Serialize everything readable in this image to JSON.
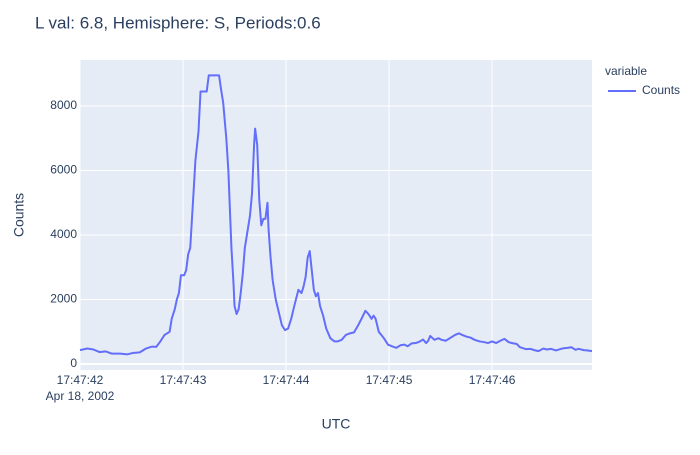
{
  "chart_data": {
    "type": "line",
    "title": "L val: 6.8, Hemisphere: S, Periods:0.6",
    "x_label": "UTC",
    "y_label": "Counts",
    "x_date_label": "Apr 18, 2002",
    "legend_title": "variable",
    "legend_position": "right",
    "grid": true,
    "xlim": [
      "2002-04-18T17:47:42.00",
      "2002-04-18T17:47:46.97"
    ],
    "xticks": [
      {
        "value": "2002-04-18T17:47:42",
        "label": "17:47:42"
      },
      {
        "value": "2002-04-18T17:47:43",
        "label": "17:47:43"
      },
      {
        "value": "2002-04-18T17:47:44",
        "label": "17:47:44"
      },
      {
        "value": "2002-04-18T17:47:45",
        "label": "17:47:45"
      },
      {
        "value": "2002-04-18T17:47:46",
        "label": "17:47:46"
      }
    ],
    "ylim": [
      -186,
      9426
    ],
    "yticks": [
      0,
      2000,
      4000,
      6000,
      8000
    ],
    "x": [
      "2002-04-18T17:47:42.00",
      "2002-04-18T17:47:42.07",
      "2002-04-18T17:47:42.13",
      "2002-04-18T17:47:42.19",
      "2002-04-18T17:47:42.25",
      "2002-04-18T17:47:42.31",
      "2002-04-18T17:47:42.39",
      "2002-04-18T17:47:42.46",
      "2002-04-18T17:47:42.51",
      "2002-04-18T17:47:42.58",
      "2002-04-18T17:47:42.64",
      "2002-04-18T17:47:42.70",
      "2002-04-18T17:47:42.74",
      "2002-04-18T17:47:42.78",
      "2002-04-18T17:47:42.82",
      "2002-04-18T17:47:42.85",
      "2002-04-18T17:47:42.87",
      "2002-04-18T17:47:42.89",
      "2002-04-18T17:47:42.92",
      "2002-04-18T17:47:42.94",
      "2002-04-18T17:47:42.96",
      "2002-04-18T17:47:42.98",
      "2002-04-18T17:47:43.01",
      "2002-04-18T17:47:43.03",
      "2002-04-18T17:47:43.05",
      "2002-04-18T17:47:43.07",
      "2002-04-18T17:47:43.10",
      "2002-04-18T17:47:43.12",
      "2002-04-18T17:47:43.15",
      "2002-04-18T17:47:43.17",
      "2002-04-18T17:47:43.23",
      "2002-04-18T17:47:43.25",
      "2002-04-18T17:47:43.35",
      "2002-04-18T17:47:43.37",
      "2002-04-18T17:47:43.39",
      "2002-04-18T17:47:43.42",
      "2002-04-18T17:47:43.44",
      "2002-04-18T17:47:43.47",
      "2002-04-18T17:47:43.49",
      "2002-04-18T17:47:43.50",
      "2002-04-18T17:47:43.52",
      "2002-04-18T17:47:43.54",
      "2002-04-18T17:47:43.56",
      "2002-04-18T17:47:43.58",
      "2002-04-18T17:47:43.60",
      "2002-04-18T17:47:43.63",
      "2002-04-18T17:47:43.65",
      "2002-04-18T17:47:43.67",
      "2002-04-18T17:47:43.69",
      "2002-04-18T17:47:43.70",
      "2002-04-18T17:47:43.72",
      "2002-04-18T17:47:43.74",
      "2002-04-18T17:47:43.76",
      "2002-04-18T17:47:43.78",
      "2002-04-18T17:47:43.80",
      "2002-04-18T17:47:43.82",
      "2002-04-18T17:47:43.83",
      "2002-04-18T17:47:43.85",
      "2002-04-18T17:47:43.87",
      "2002-04-18T17:47:43.90",
      "2002-04-18T17:47:43.93",
      "2002-04-18T17:47:43.96",
      "2002-04-18T17:47:43.99",
      "2002-04-18T17:47:44.02",
      "2002-04-18T17:47:44.05",
      "2002-04-18T17:47:44.08",
      "2002-04-18T17:47:44.12",
      "2002-04-18T17:47:44.15",
      "2002-04-18T17:47:44.17",
      "2002-04-18T17:47:44.19",
      "2002-04-18T17:47:44.21",
      "2002-04-18T17:47:44.23",
      "2002-04-18T17:47:44.25",
      "2002-04-18T17:47:44.27",
      "2002-04-18T17:47:44.29",
      "2002-04-18T17:47:44.31",
      "2002-04-18T17:47:44.33",
      "2002-04-18T17:47:44.36",
      "2002-04-18T17:47:44.39",
      "2002-04-18T17:47:44.43",
      "2002-04-18T17:47:44.47",
      "2002-04-18T17:47:44.50",
      "2002-04-18T17:47:44.54",
      "2002-04-18T17:47:44.58",
      "2002-04-18T17:47:44.62",
      "2002-04-18T17:47:44.66",
      "2002-04-18T17:47:44.70",
      "2002-04-18T17:47:44.74",
      "2002-04-18T17:47:44.77",
      "2002-04-18T17:47:44.80",
      "2002-04-18T17:47:44.83",
      "2002-04-18T17:47:44.85",
      "2002-04-18T17:47:44.87",
      "2002-04-18T17:47:44.90",
      "2002-04-18T17:47:44.95",
      "2002-04-18T17:47:44.99",
      "2002-04-18T17:47:45.03",
      "2002-04-18T17:47:45.07",
      "2002-04-18T17:47:45.11",
      "2002-04-18T17:47:45.15",
      "2002-04-18T17:47:45.18",
      "2002-04-18T17:47:45.22",
      "2002-04-18T17:47:45.26",
      "2002-04-18T17:47:45.30",
      "2002-04-18T17:47:45.33",
      "2002-04-18T17:47:45.36",
      "2002-04-18T17:47:45.38",
      "2002-04-18T17:47:45.40",
      "2002-04-18T17:47:45.44",
      "2002-04-18T17:47:45.48",
      "2002-04-18T17:47:45.51",
      "2002-04-18T17:47:45.55",
      "2002-04-18T17:47:45.59",
      "2002-04-18T17:47:45.64",
      "2002-04-18T17:47:45.68",
      "2002-04-18T17:47:45.71",
      "2002-04-18T17:47:45.75",
      "2002-04-18T17:47:45.79",
      "2002-04-18T17:47:45.83",
      "2002-04-18T17:47:45.88",
      "2002-04-18T17:47:45.92",
      "2002-04-18T17:47:45.96",
      "2002-04-18T17:47:46.00",
      "2002-04-18T17:47:46.04",
      "2002-04-18T17:47:46.08",
      "2002-04-18T17:47:46.12",
      "2002-04-18T17:47:46.16",
      "2002-04-18T17:47:46.19",
      "2002-04-18T17:47:46.24",
      "2002-04-18T17:47:46.27",
      "2002-04-18T17:47:46.33",
      "2002-04-18T17:47:46.37",
      "2002-04-18T17:47:46.41",
      "2002-04-18T17:47:46.45",
      "2002-04-18T17:47:46.50",
      "2002-04-18T17:47:46.53",
      "2002-04-18T17:47:46.57",
      "2002-04-18T17:47:46.62",
      "2002-04-18T17:47:46.68",
      "2002-04-18T17:47:46.73",
      "2002-04-18T17:47:46.77",
      "2002-04-18T17:47:46.81",
      "2002-04-18T17:47:46.84",
      "2002-04-18T17:47:46.89",
      "2002-04-18T17:47:46.93",
      "2002-04-18T17:47:46.97"
    ],
    "series": [
      {
        "name": "Counts",
        "color": "#636efa",
        "values": [
          430,
          480,
          450,
          370,
          390,
          320,
          320,
          300,
          340,
          360,
          480,
          540,
          530,
          700,
          900,
          960,
          1000,
          1400,
          1700,
          2000,
          2200,
          2750,
          2750,
          2900,
          3400,
          3600,
          5200,
          6300,
          7200,
          8450,
          8450,
          8950,
          8950,
          8500,
          8100,
          7000,
          6000,
          3600,
          2500,
          1800,
          1550,
          1700,
          2200,
          2800,
          3600,
          4200,
          4600,
          5300,
          6800,
          7300,
          6800,
          5100,
          4300,
          4500,
          4500,
          5000,
          4200,
          3300,
          2600,
          2000,
          1600,
          1200,
          1050,
          1100,
          1400,
          1800,
          2300,
          2200,
          2400,
          2700,
          3300,
          3500,
          2900,
          2300,
          2100,
          2200,
          1800,
          1500,
          1100,
          800,
          700,
          700,
          750,
          900,
          950,
          980,
          1200,
          1450,
          1650,
          1550,
          1400,
          1500,
          1400,
          1000,
          800,
          600,
          550,
          500,
          580,
          600,
          550,
          640,
          650,
          700,
          760,
          650,
          720,
          870,
          750,
          800,
          750,
          720,
          800,
          900,
          950,
          900,
          850,
          820,
          750,
          700,
          680,
          650,
          700,
          650,
          720,
          780,
          680,
          650,
          620,
          520,
          460,
          470,
          430,
          400,
          480,
          450,
          470,
          420,
          480,
          500,
          520,
          440,
          470,
          430,
          420,
          400
        ]
      }
    ]
  }
}
